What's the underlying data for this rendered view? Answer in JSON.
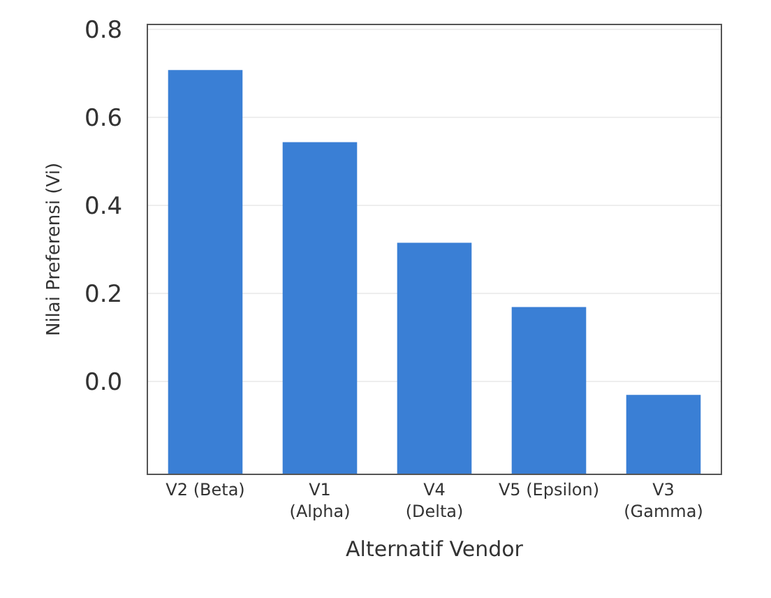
{
  "chart_data": {
    "type": "bar",
    "xlabel": "Alternatif Vendor",
    "ylabel": "Nilai Preferensi (Vi)",
    "categories": [
      "V2 (Beta)",
      "V1\n(Alpha)",
      "V4\n(Delta)",
      "V5 (Epsilon)",
      "V3\n(Gamma)"
    ],
    "base": [
      -0.21,
      -0.21,
      -0.21,
      -0.21,
      -0.21
    ],
    "values": [
      0.918,
      0.754,
      0.525,
      0.379,
      0.179
    ],
    "color": "#3a7fd5",
    "ylim": [
      -0.21,
      0.81
    ],
    "yticks": [
      {
        "value": 0.0,
        "label": "0.0"
      },
      {
        "value": 0.2,
        "label": "0.2"
      },
      {
        "value": 0.4,
        "label": "0.4"
      },
      {
        "value": 0.6,
        "label": "0.6"
      },
      {
        "value": 0.8,
        "label": "0.8"
      }
    ],
    "grid": "y"
  }
}
